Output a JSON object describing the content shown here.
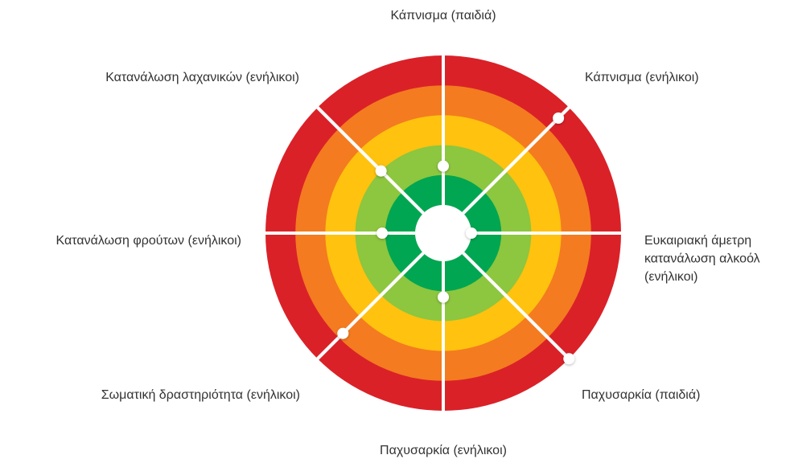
{
  "chart_data": {
    "type": "target",
    "categories": [
      [
        "Κάπνισμα (παιδιά)"
      ],
      [
        "Κάπνισμα (ενήλικοι)"
      ],
      [
        "Ευκαιριακή άμετρη",
        "κατανάλωση αλκοόλ",
        "(ενήλικοι)"
      ],
      [
        "Παχυσαρκία (παιδιά)"
      ],
      [
        "Παχυσαρκία (ενήλικοι)"
      ],
      [
        "Σωματική δραστηριότητα (ενήλικοι)"
      ],
      [
        "Κατανάλωση φρούτων (ενήλικοι)"
      ],
      [
        "Κατανάλωση λαχανικών (ενήλικοι)"
      ]
    ],
    "values": [
      1.3,
      4.5,
      0,
      5,
      1.2,
      3.8,
      1.1,
      2
    ],
    "rlim": [
      0,
      5
    ],
    "rticks": [
      0,
      1,
      2,
      3,
      4,
      5
    ],
    "band_colors": [
      "#00a651",
      "#8dc63f",
      "#ffc20e",
      "#f47b20",
      "#da2128"
    ],
    "point_color": "#ffffff"
  }
}
